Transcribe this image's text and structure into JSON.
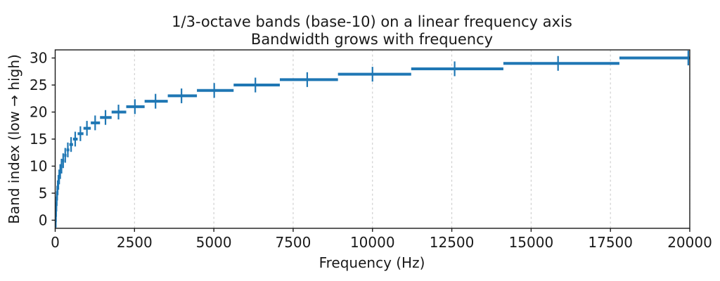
{
  "chart": {
    "title_line1": "1/3-octave bands (base-10) on a linear frequency axis",
    "title_line2": "Bandwidth grows with frequency",
    "xlabel": "Frequency (Hz)",
    "ylabel": "Band index (low → high)"
  },
  "chart_data": {
    "type": "scatter",
    "style": "horizontal interval segments (f_low to f_high) at y = band index, with a vertical '|' marker at f_center",
    "title": "1/3-octave bands (base-10) on a linear frequency axis\nBandwidth grows with frequency",
    "xlabel": "Frequency (Hz)",
    "ylabel": "Band index (low → high)",
    "xlim": [
      0,
      20000
    ],
    "ylim": [
      -1.5,
      31.5
    ],
    "x_ticks": [
      0,
      2500,
      5000,
      7500,
      10000,
      12500,
      15000,
      17500,
      20000
    ],
    "y_ticks": [
      0,
      5,
      10,
      15,
      20,
      25,
      30
    ],
    "grid": "vertical dashed gridlines at each x tick",
    "grid_color": "#cccccc",
    "line_color": "#1f77b4",
    "axis_color": "#1a1a1a",
    "bands": [
      {
        "index": 0,
        "f_low": 17.78,
        "f_center": 19.95,
        "f_high": 22.39
      },
      {
        "index": 1,
        "f_low": 22.39,
        "f_center": 25.12,
        "f_high": 28.18
      },
      {
        "index": 2,
        "f_low": 28.18,
        "f_center": 31.62,
        "f_high": 35.48
      },
      {
        "index": 3,
        "f_low": 35.48,
        "f_center": 39.81,
        "f_high": 44.67
      },
      {
        "index": 4,
        "f_low": 44.67,
        "f_center": 50.12,
        "f_high": 56.23
      },
      {
        "index": 5,
        "f_low": 56.23,
        "f_center": 63.1,
        "f_high": 70.79
      },
      {
        "index": 6,
        "f_low": 70.79,
        "f_center": 79.43,
        "f_high": 89.13
      },
      {
        "index": 7,
        "f_low": 89.13,
        "f_center": 100.0,
        "f_high": 112.2
      },
      {
        "index": 8,
        "f_low": 112.2,
        "f_center": 125.89,
        "f_high": 141.25
      },
      {
        "index": 9,
        "f_low": 141.25,
        "f_center": 158.49,
        "f_high": 177.83
      },
      {
        "index": 10,
        "f_low": 177.83,
        "f_center": 199.53,
        "f_high": 223.87
      },
      {
        "index": 11,
        "f_low": 223.87,
        "f_center": 251.19,
        "f_high": 281.84
      },
      {
        "index": 12,
        "f_low": 281.84,
        "f_center": 316.23,
        "f_high": 354.81
      },
      {
        "index": 13,
        "f_low": 354.81,
        "f_center": 398.11,
        "f_high": 446.68
      },
      {
        "index": 14,
        "f_low": 446.68,
        "f_center": 501.19,
        "f_high": 562.34
      },
      {
        "index": 15,
        "f_low": 562.34,
        "f_center": 630.96,
        "f_high": 707.95
      },
      {
        "index": 16,
        "f_low": 707.95,
        "f_center": 794.33,
        "f_high": 891.25
      },
      {
        "index": 17,
        "f_low": 891.25,
        "f_center": 1000.0,
        "f_high": 1122.02
      },
      {
        "index": 18,
        "f_low": 1122.02,
        "f_center": 1258.93,
        "f_high": 1412.54
      },
      {
        "index": 19,
        "f_low": 1412.54,
        "f_center": 1584.89,
        "f_high": 1778.28
      },
      {
        "index": 20,
        "f_low": 1778.28,
        "f_center": 1995.26,
        "f_high": 2238.72
      },
      {
        "index": 21,
        "f_low": 2238.72,
        "f_center": 2511.89,
        "f_high": 2818.38
      },
      {
        "index": 22,
        "f_low": 2818.38,
        "f_center": 3162.28,
        "f_high": 3548.13
      },
      {
        "index": 23,
        "f_low": 3548.13,
        "f_center": 3981.07,
        "f_high": 4466.84
      },
      {
        "index": 24,
        "f_low": 4466.84,
        "f_center": 5011.87,
        "f_high": 5623.41
      },
      {
        "index": 25,
        "f_low": 5623.41,
        "f_center": 6309.57,
        "f_high": 7079.46
      },
      {
        "index": 26,
        "f_low": 7079.46,
        "f_center": 7943.28,
        "f_high": 8912.51
      },
      {
        "index": 27,
        "f_low": 8912.51,
        "f_center": 10000.0,
        "f_high": 11220.18
      },
      {
        "index": 28,
        "f_low": 11220.18,
        "f_center": 12589.25,
        "f_high": 14125.38
      },
      {
        "index": 29,
        "f_low": 14125.38,
        "f_center": 15848.93,
        "f_high": 17782.79
      },
      {
        "index": 30,
        "f_low": 17782.79,
        "f_center": 19952.62,
        "f_high": 22387.21
      }
    ]
  }
}
